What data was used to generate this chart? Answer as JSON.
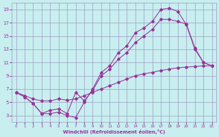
{
  "xlabel": "Windchill (Refroidissement éolien,°C)",
  "bg_color": "#c8eef0",
  "grid_color": "#9999bb",
  "line_color": "#993399",
  "xlim": [
    -0.5,
    23.5
  ],
  "ylim": [
    2,
    20
  ],
  "xticks": [
    0,
    1,
    2,
    3,
    4,
    5,
    6,
    7,
    8,
    9,
    10,
    11,
    12,
    13,
    14,
    15,
    16,
    17,
    18,
    19,
    20,
    21,
    22,
    23
  ],
  "yticks": [
    3,
    5,
    7,
    9,
    11,
    13,
    15,
    17,
    19
  ],
  "line1_x": [
    0,
    1,
    2,
    3,
    4,
    5,
    6,
    7,
    8,
    9,
    10,
    11,
    12,
    13,
    14,
    15,
    16,
    17,
    18,
    19,
    20,
    21,
    22,
    23
  ],
  "line1_y": [
    6.5,
    5.8,
    4.8,
    3.3,
    3.3,
    3.5,
    3.0,
    2.7,
    5.0,
    7.0,
    9.5,
    10.5,
    12.5,
    13.5,
    15.5,
    16.2,
    17.2,
    19.0,
    19.2,
    18.7,
    16.7,
    13.0,
    11.0,
    10.5
  ],
  "line2_x": [
    0,
    1,
    2,
    3,
    4,
    5,
    6,
    7,
    8,
    9,
    10,
    11,
    12,
    13,
    14,
    15,
    16,
    17,
    18,
    19,
    20,
    21,
    22,
    23
  ],
  "line2_y": [
    6.5,
    5.8,
    4.8,
    3.3,
    3.8,
    4.0,
    3.3,
    6.5,
    5.2,
    6.8,
    9.0,
    10.0,
    11.5,
    12.5,
    14.0,
    15.0,
    16.0,
    17.5,
    17.5,
    17.2,
    16.8,
    13.2,
    11.0,
    10.5
  ],
  "line3_x": [
    0,
    1,
    2,
    3,
    4,
    5,
    6,
    7,
    8,
    9,
    10,
    11,
    12,
    13,
    14,
    15,
    16,
    17,
    18,
    19,
    20,
    21,
    22,
    23
  ],
  "line3_y": [
    6.5,
    6.0,
    5.5,
    5.2,
    5.2,
    5.5,
    5.3,
    5.5,
    6.0,
    6.5,
    7.0,
    7.5,
    8.0,
    8.5,
    9.0,
    9.3,
    9.5,
    9.8,
    10.0,
    10.2,
    10.3,
    10.4,
    10.5,
    10.5
  ]
}
